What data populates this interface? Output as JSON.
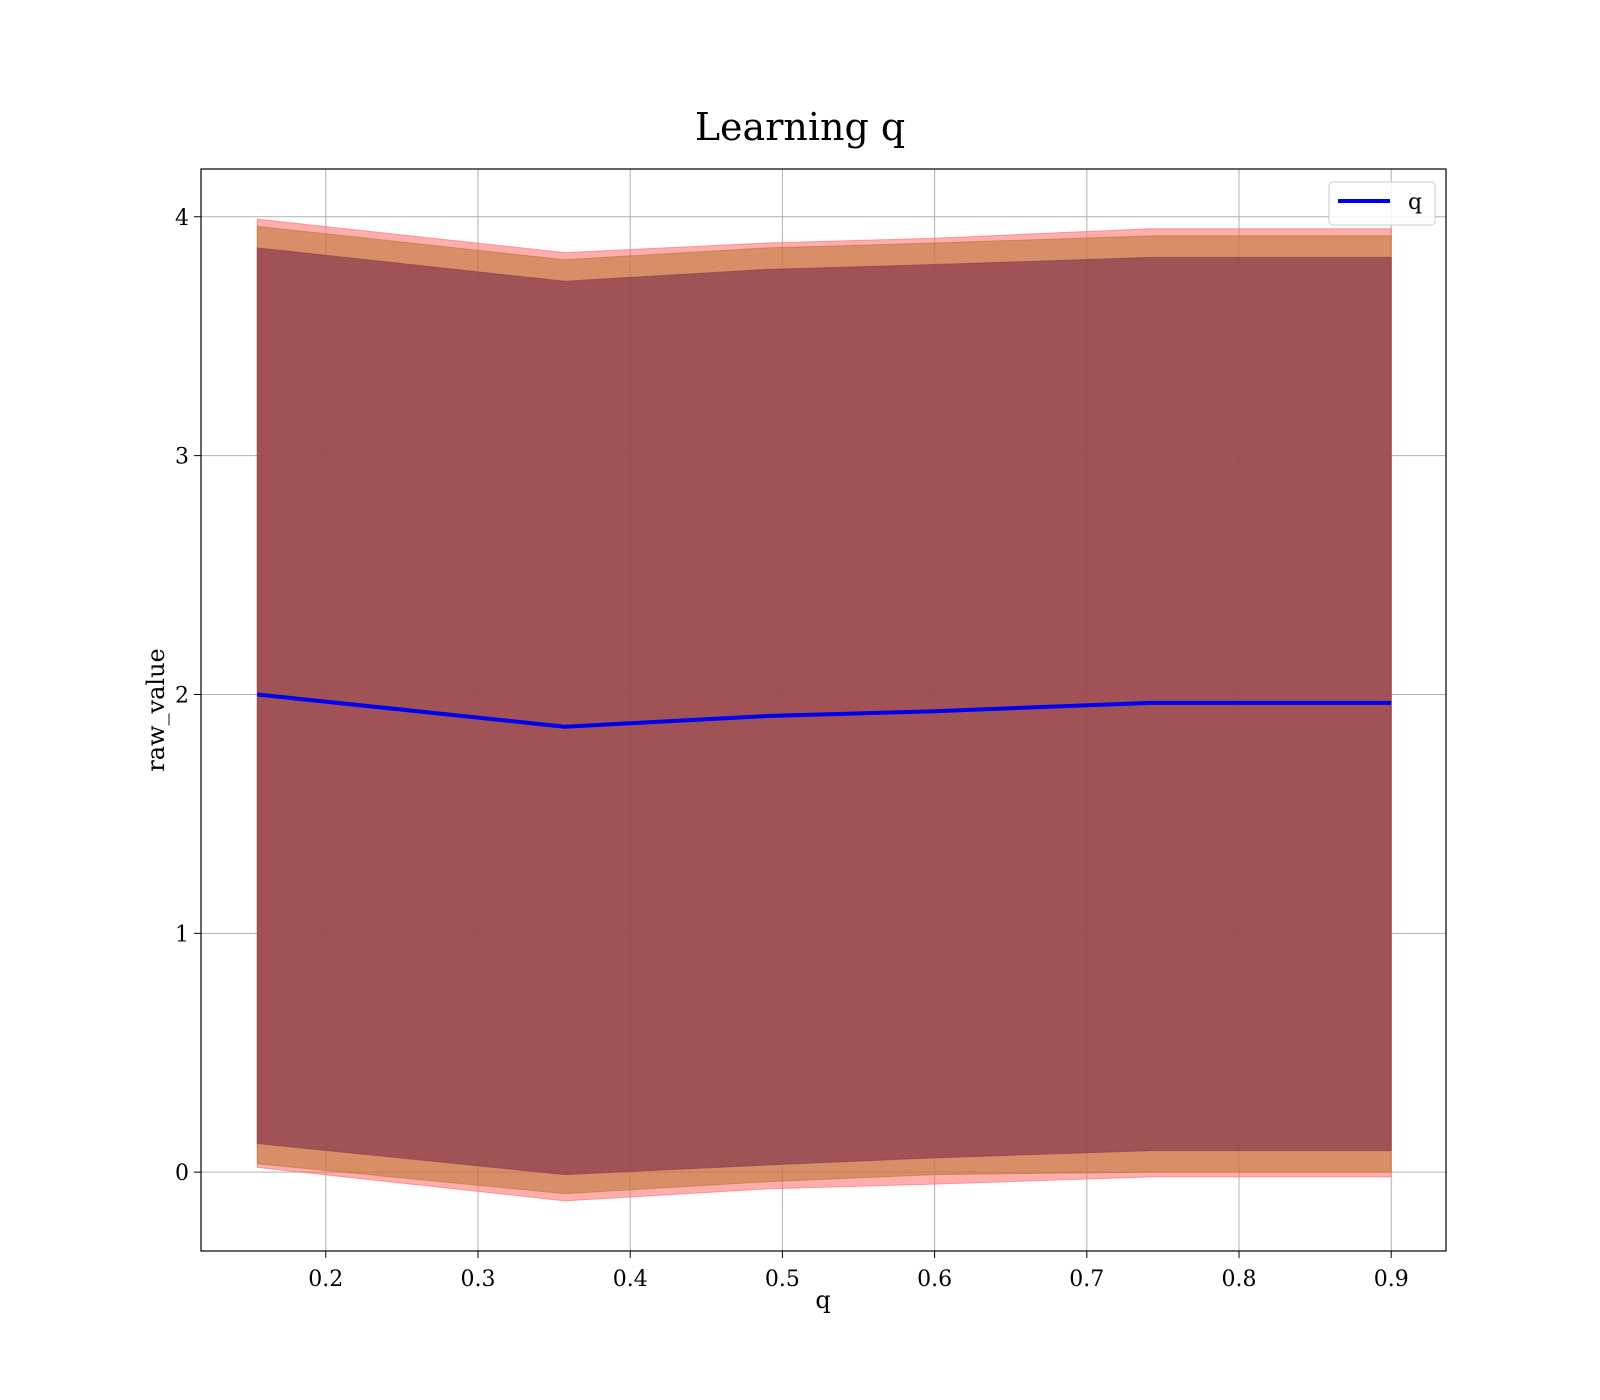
{
  "chart_data": {
    "type": "area",
    "title": "Learning q",
    "xlabel": "q",
    "ylabel": "raw_value",
    "xlim": [
      0.118,
      0.936
    ],
    "ylim": [
      -0.33,
      4.2
    ],
    "xticks": [
      0.2,
      0.3,
      0.4,
      0.5,
      0.6,
      0.7,
      0.8,
      0.9
    ],
    "xtick_labels": [
      "0.2",
      "0.3",
      "0.4",
      "0.5",
      "0.6",
      "0.7",
      "0.8",
      "0.9"
    ],
    "yticks": [
      0,
      1,
      2,
      3,
      4
    ],
    "ytick_labels": [
      "0",
      "1",
      "2",
      "3",
      "4"
    ],
    "grid": true,
    "legend_position": "top-right",
    "x": [
      0.155,
      0.357,
      0.49,
      0.6,
      0.742,
      0.9
    ],
    "series": [
      {
        "name": "q",
        "color": "#0000ee",
        "values": [
          2.0,
          1.865,
          1.91,
          1.93,
          1.965,
          1.965
        ]
      }
    ],
    "bands": [
      {
        "color": "#ff6a6a",
        "opacity": 0.55,
        "lower": [
          0.02,
          -0.12,
          -0.07,
          -0.05,
          -0.02,
          -0.02
        ],
        "upper": [
          3.99,
          3.85,
          3.89,
          3.91,
          3.95,
          3.95
        ]
      },
      {
        "color": "#b8762e",
        "opacity": 0.55,
        "lower": [
          0.035,
          -0.09,
          -0.04,
          -0.01,
          0.0,
          0.0
        ],
        "upper": [
          3.96,
          3.82,
          3.87,
          3.89,
          3.92,
          3.92
        ]
      },
      {
        "color": "#8b3a52",
        "opacity": 0.72,
        "lower": [
          0.12,
          -0.01,
          0.03,
          0.06,
          0.09,
          0.09
        ],
        "upper": [
          3.87,
          3.73,
          3.78,
          3.8,
          3.83,
          3.83
        ]
      }
    ]
  }
}
